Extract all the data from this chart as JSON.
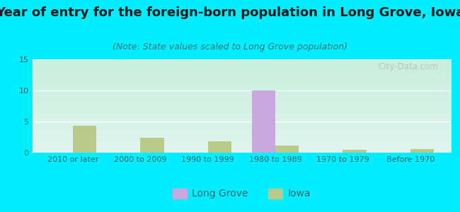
{
  "title": "Year of entry for the foreign-born population in Long Grove, Iowa",
  "subtitle": "(Note: State values scaled to Long Grove population)",
  "categories": [
    "2010 or later",
    "2000 to 2009",
    "1990 to 1999",
    "1980 to 1989",
    "1970 to 1979",
    "Before 1970"
  ],
  "long_grove_values": [
    0,
    0,
    0,
    10,
    0,
    0
  ],
  "iowa_values": [
    4.3,
    2.4,
    1.8,
    1.1,
    0.5,
    0.6
  ],
  "long_grove_color": "#c9a8e0",
  "iowa_color": "#b8c98a",
  "background_outer": "#00eeff",
  "background_plot_top": "#e0f5ee",
  "background_plot_bottom": "#c8eedd",
  "ylim": [
    0,
    15
  ],
  "yticks": [
    0,
    5,
    10,
    15
  ],
  "bar_width": 0.35,
  "title_fontsize": 13,
  "subtitle_fontsize": 9,
  "tick_fontsize": 8,
  "legend_fontsize": 10
}
